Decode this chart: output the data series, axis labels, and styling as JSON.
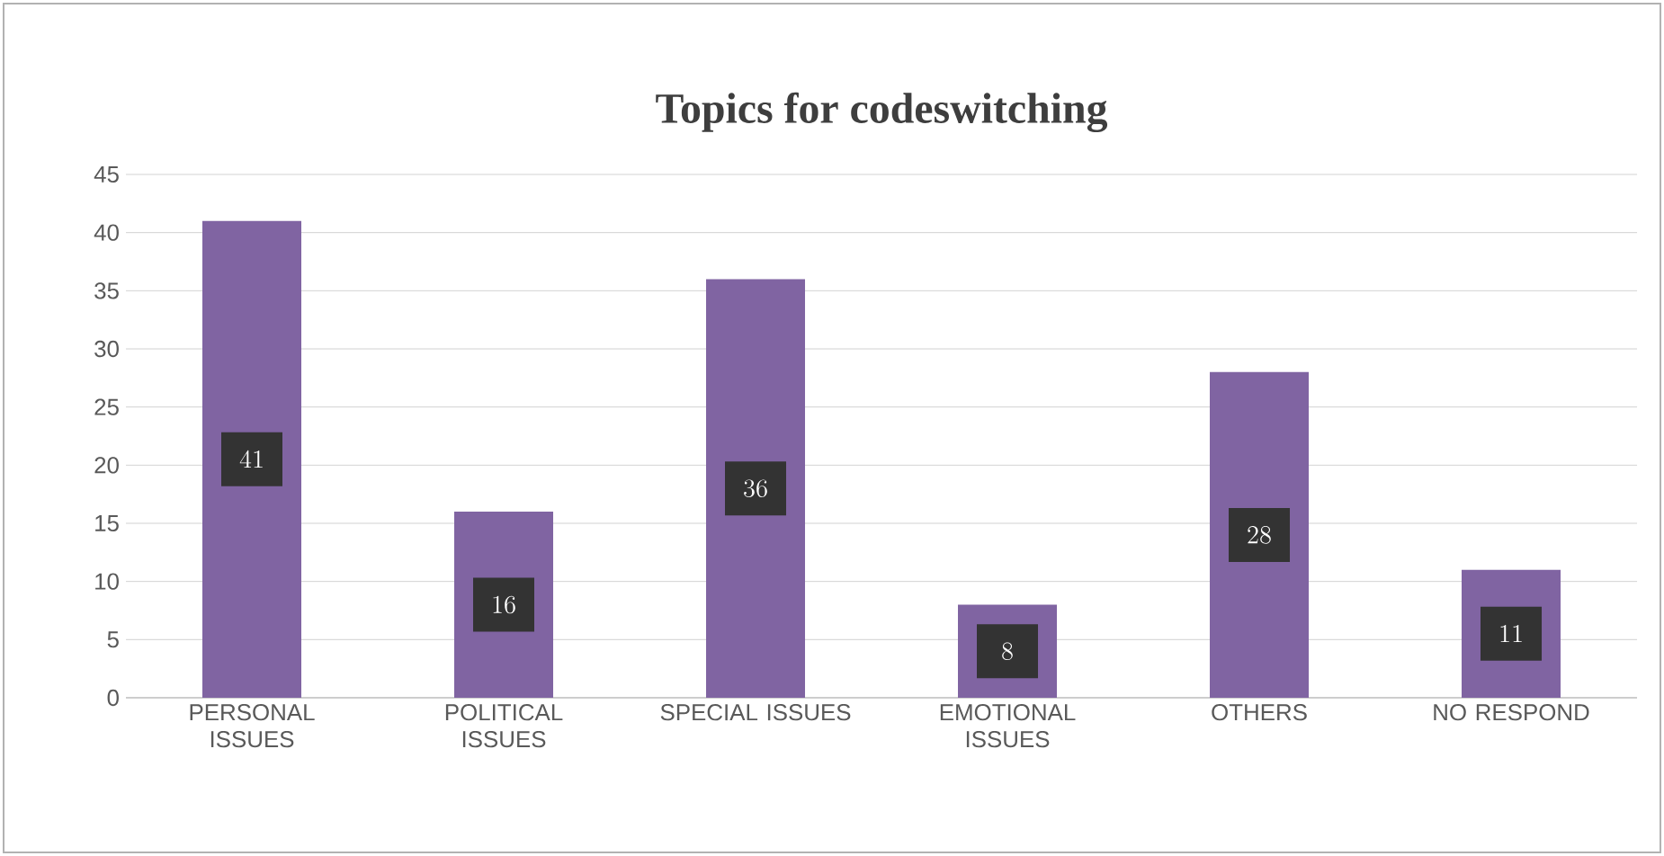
{
  "chart_data": {
    "type": "bar",
    "title": "Topics for codeswitching",
    "categories": [
      "PERSONAL ISSUES",
      "POLITICAL ISSUES",
      "SPECIAL ISSUES",
      "EMOTIONAL ISSUES",
      "OTHERS",
      "NO RESPOND"
    ],
    "values": [
      41,
      16,
      36,
      8,
      28,
      11
    ],
    "color": "#8064a2",
    "ylim": [
      0,
      45
    ],
    "yticks": [
      0,
      5,
      10,
      15,
      20,
      25,
      30,
      35,
      40,
      45
    ],
    "grid": "y",
    "data_labels": true
  }
}
